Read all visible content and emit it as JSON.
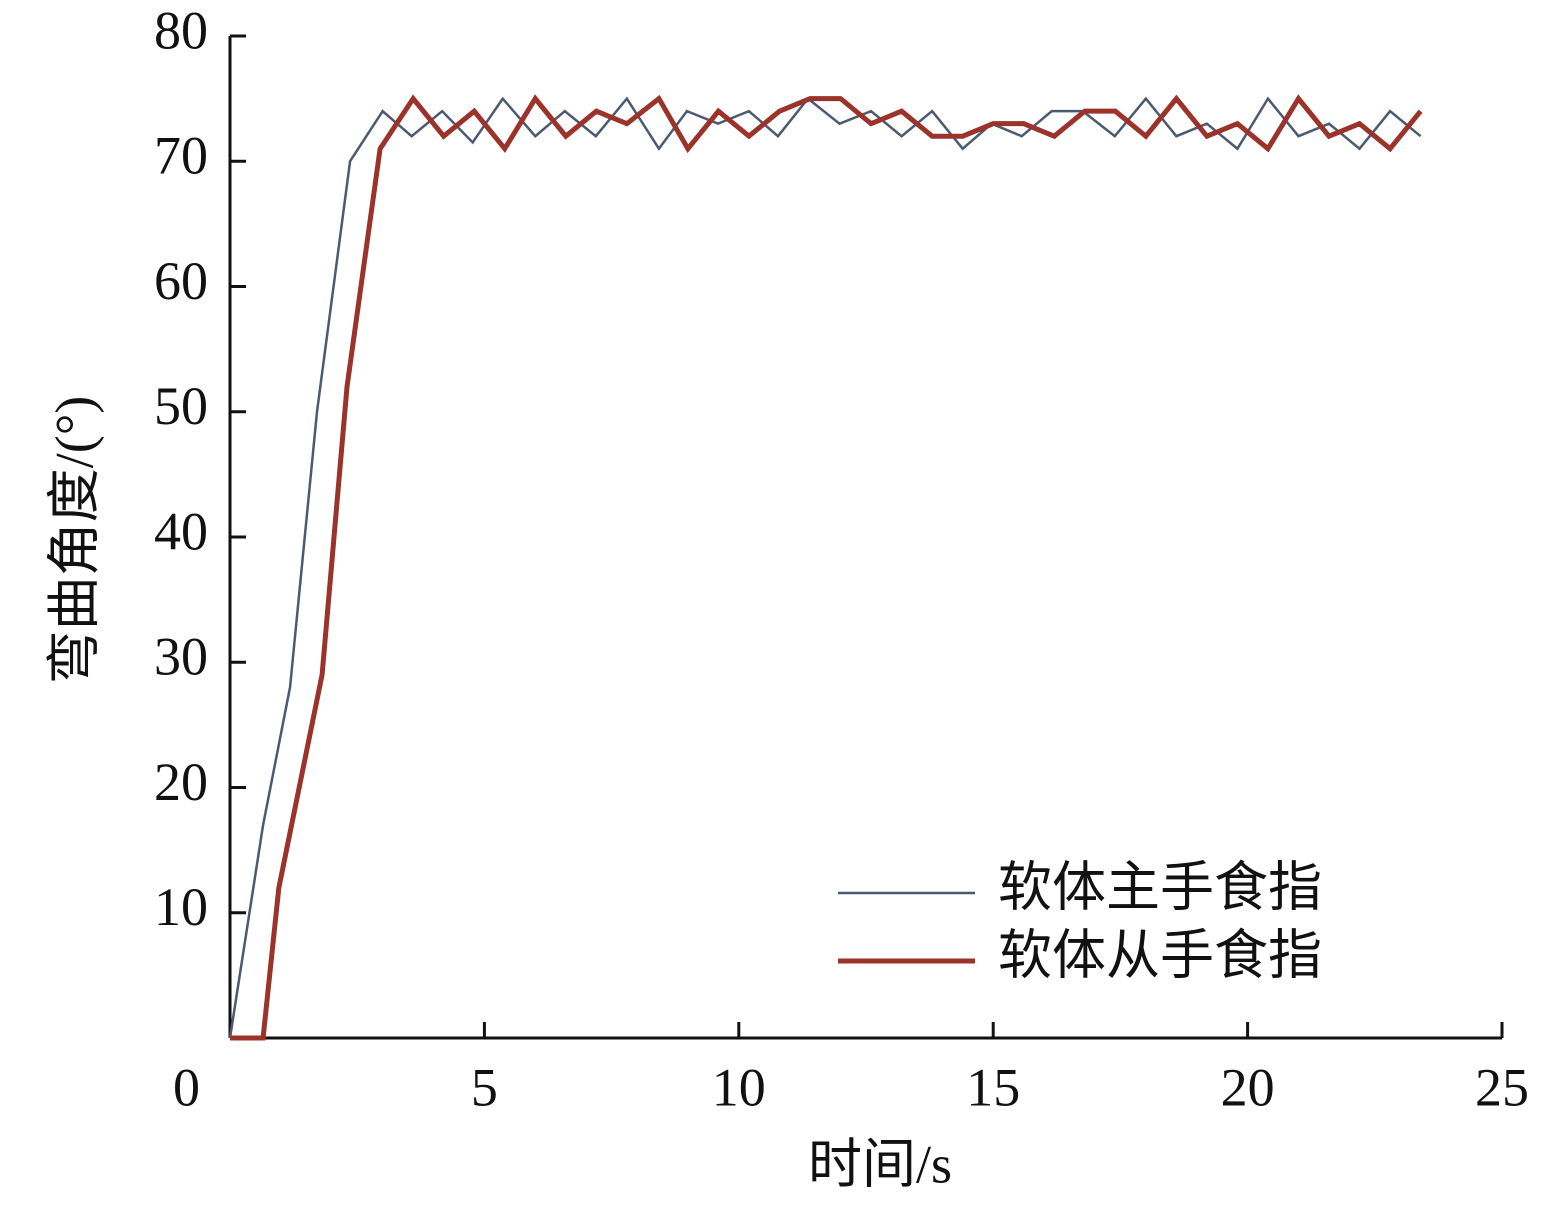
{
  "chart_data": {
    "type": "line",
    "xlabel": "时间/s",
    "ylabel": "弯曲角度/(°)",
    "xlim": [
      0,
      25
    ],
    "ylim": [
      0,
      80
    ],
    "xticks": [
      0,
      5,
      10,
      15,
      20,
      25
    ],
    "yticks": [
      10,
      20,
      30,
      40,
      50,
      60,
      70,
      80
    ],
    "legend": "lower right",
    "series": [
      {
        "name": "软体主手食指",
        "color": "#4a5a70",
        "width": 2.5,
        "x": [
          0,
          0.65,
          1.18,
          1.71,
          2.36,
          3.0,
          3.57,
          4.17,
          4.77,
          5.36,
          6.0,
          6.58,
          7.19,
          7.8,
          8.43,
          8.98,
          9.59,
          10.2,
          10.77,
          11.36,
          11.98,
          12.6,
          13.2,
          13.8,
          14.4,
          14.97,
          15.56,
          16.15,
          16.76,
          17.39,
          18.0,
          18.6,
          19.2,
          19.8,
          20.4,
          21.0,
          21.6,
          22.2,
          22.8,
          23.4
        ],
        "values": [
          0,
          17,
          28,
          50,
          70,
          74,
          72,
          74,
          71.5,
          75,
          72,
          74,
          72,
          75,
          71,
          74,
          73,
          74,
          72,
          75,
          73,
          74,
          72,
          74,
          71,
          73,
          72,
          74,
          74,
          72,
          75,
          72,
          73,
          71,
          75,
          72,
          73,
          71,
          74,
          72
        ]
      },
      {
        "name": "软体从手食指",
        "color": "#9b332b",
        "width": 5,
        "x": [
          0,
          0.65,
          0.96,
          1.81,
          2.3,
          2.95,
          3.6,
          4.2,
          4.8,
          5.4,
          6.0,
          6.6,
          7.2,
          7.8,
          8.43,
          9.0,
          9.6,
          10.2,
          10.8,
          11.4,
          12.0,
          12.6,
          13.2,
          13.8,
          14.4,
          15.0,
          15.6,
          16.2,
          16.8,
          17.4,
          18.0,
          18.6,
          19.2,
          19.8,
          20.4,
          21.0,
          21.6,
          22.2,
          22.8,
          23.4
        ],
        "values": [
          0,
          0,
          12,
          29,
          52,
          71,
          75,
          72,
          74,
          71,
          75,
          72,
          74,
          73,
          75,
          71,
          74,
          72,
          74,
          75,
          75,
          73,
          74,
          72,
          72,
          73,
          73,
          72,
          74,
          74,
          72,
          75,
          72,
          73,
          71,
          75,
          72,
          73,
          71,
          74
        ]
      }
    ]
  }
}
